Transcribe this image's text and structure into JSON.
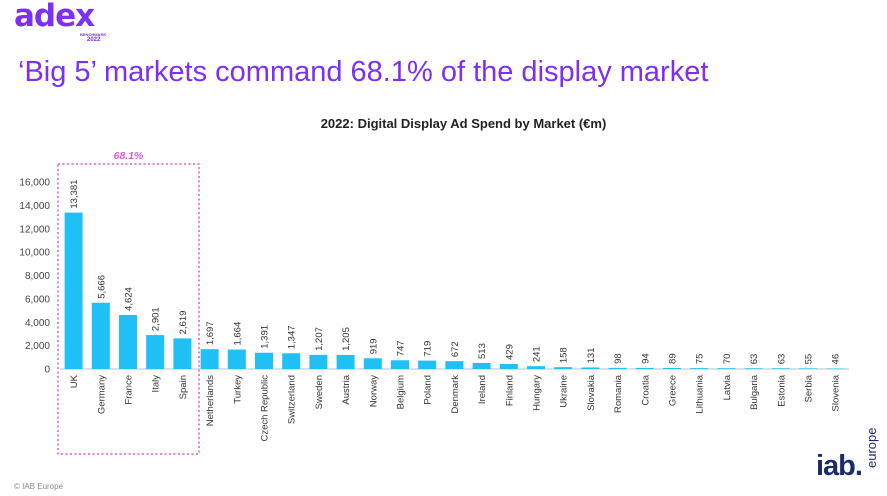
{
  "brand": {
    "logo": "adex",
    "sub": "BENCHMARK",
    "year": "2022"
  },
  "headline": "‘Big 5’ markets command 68.1% of the display market",
  "footer": "© IAB Europe",
  "iab": {
    "word": "iab.",
    "region": "europe"
  },
  "colors": {
    "bar": "#1ec0f5",
    "accent": "#7b2ff7",
    "highlight": "#e15ad0"
  },
  "chart_data": {
    "type": "bar",
    "title": "2022: Digital Display Ad Spend by Market (€m)",
    "categories": [
      "UK",
      "Germany",
      "France",
      "Italy",
      "Spain",
      "Netherlands",
      "Turkey",
      "Czech Republic",
      "Switzerland",
      "Sweden",
      "Austria",
      "Norway",
      "Belgium",
      "Poland",
      "Denmark",
      "Ireland",
      "Finland",
      "Hungary",
      "Ukraine",
      "Slovakia",
      "Romania",
      "Croatia",
      "Greece",
      "Lithuania",
      "Latvia",
      "Bulgaria",
      "Estonia",
      "Serbia",
      "Slovenia"
    ],
    "values": [
      13381,
      5666,
      4624,
      2901,
      2619,
      1697,
      1664,
      1391,
      1347,
      1207,
      1205,
      919,
      747,
      719,
      672,
      513,
      429,
      241,
      158,
      131,
      98,
      94,
      89,
      75,
      70,
      63,
      63,
      55,
      46
    ],
    "data_labels": [
      "13,381",
      "5,666",
      "4,624",
      "2,901",
      "2,619",
      "1,697",
      "1,664",
      "1,391",
      "1,347",
      "1,207",
      "1,205",
      "919",
      "747",
      "719",
      "672",
      "513",
      "429",
      "241",
      "158",
      "131",
      "98",
      "94",
      "89",
      "75",
      "70",
      "63",
      "63",
      "55",
      "46"
    ],
    "yticks": [
      "0",
      "2,000",
      "4,000",
      "6,000",
      "8,000",
      "10,000",
      "12,000",
      "14,000",
      "16,000"
    ],
    "ylim": [
      0,
      16000
    ],
    "highlight": {
      "label": "68.1%",
      "from_category": "UK",
      "to_category": "Spain"
    },
    "xlabel": "",
    "ylabel": "",
    "grid": false
  }
}
